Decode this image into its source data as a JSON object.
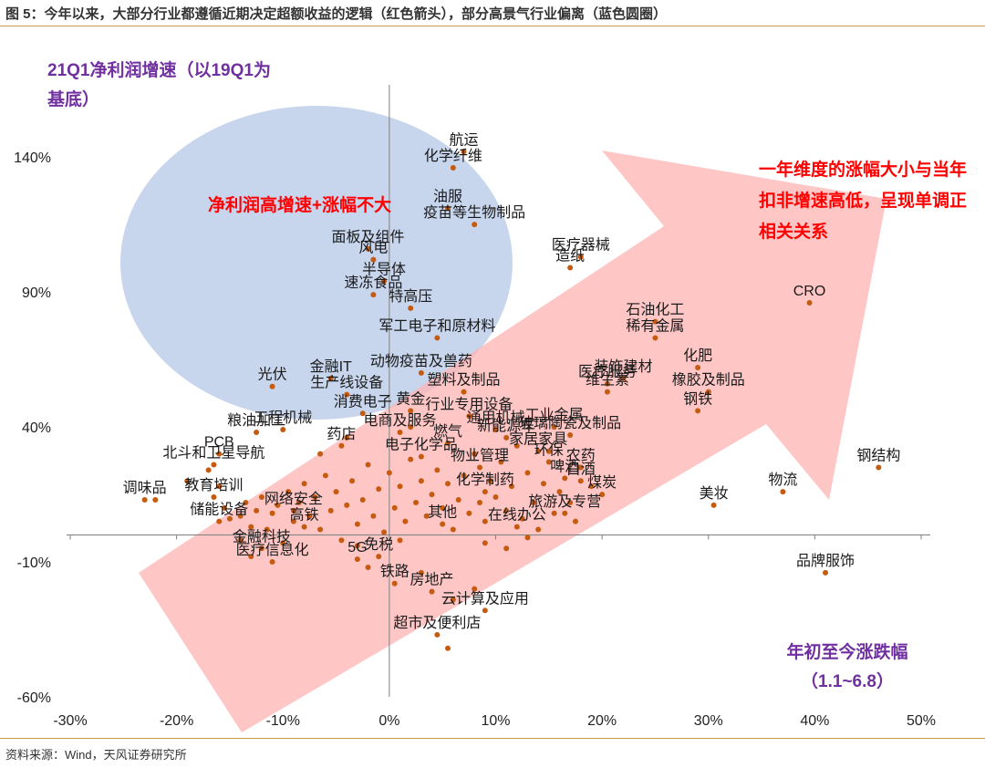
{
  "title": "图 5：今年以来，大部分行业都遵循近期决定超额收益的逻辑（红色箭头），部分高景气行业偏离（蓝色圆圈）",
  "source": "资料来源：Wind，天风证券研究所",
  "annotations": {
    "y_axis_label": "21Q1净利润增速（以19Q1为基底）",
    "x_axis_label": "年初至今涨跌幅（1.1~6.8）",
    "blue_circle_text": "净利润高增速+涨幅不大",
    "red_arrow_text": "一年维度的涨幅大小与当年扣非增速高低，呈现单调正相关关系"
  },
  "colors": {
    "point": "#c55a11",
    "blue_circle": "#b4c7e7",
    "red_arrow": "#ffb3b3",
    "annotation_red": "#ff0000",
    "annotation_purple": "#7030a0",
    "axis": "#7f7f7f"
  },
  "chart_data": {
    "type": "scatter",
    "xlim": [
      -0.3,
      0.5
    ],
    "ylim": [
      -0.6,
      1.6
    ],
    "x_ticks": [
      "-30%",
      "-20%",
      "-10%",
      "0%",
      "10%",
      "20%",
      "30%",
      "40%",
      "50%"
    ],
    "y_ticks": [
      "140%",
      "90%",
      "40%",
      "-10%",
      "-60%"
    ],
    "y_tick_values": [
      1.4,
      0.9,
      0.4,
      -0.1,
      -0.6
    ],
    "grid": false,
    "labeled_points": [
      {
        "label": "航运",
        "x": 0.07,
        "y": 1.42
      },
      {
        "label": "化学纤维",
        "x": 0.06,
        "y": 1.36
      },
      {
        "label": "油服",
        "x": 0.055,
        "y": 1.21
      },
      {
        "label": "疫苗等生物制品",
        "x": 0.08,
        "y": 1.15
      },
      {
        "label": "医疗器械",
        "x": 0.18,
        "y": 1.03
      },
      {
        "label": "造纸",
        "x": 0.17,
        "y": 0.99
      },
      {
        "label": "面板及组件",
        "x": -0.02,
        "y": 1.06
      },
      {
        "label": "风电",
        "x": -0.015,
        "y": 1.02
      },
      {
        "label": "半导体",
        "x": -0.005,
        "y": 0.94
      },
      {
        "label": "速冻食品",
        "x": -0.015,
        "y": 0.89
      },
      {
        "label": "特高压",
        "x": 0.02,
        "y": 0.84
      },
      {
        "label": "CRO",
        "x": 0.395,
        "y": 0.86
      },
      {
        "label": "石油化工",
        "x": 0.25,
        "y": 0.79
      },
      {
        "label": "稀有金属",
        "x": 0.25,
        "y": 0.73
      },
      {
        "label": "化肥",
        "x": 0.29,
        "y": 0.62
      },
      {
        "label": "装饰建材",
        "x": 0.22,
        "y": 0.58
      },
      {
        "label": "医疗服务",
        "x": 0.205,
        "y": 0.56
      },
      {
        "label": "维生素",
        "x": 0.205,
        "y": 0.53
      },
      {
        "label": "橡胶及制品",
        "x": 0.3,
        "y": 0.53
      },
      {
        "label": "钢铁",
        "x": 0.29,
        "y": 0.46
      },
      {
        "label": "军工电子和原材料",
        "x": 0.045,
        "y": 0.73
      },
      {
        "label": "光伏",
        "x": -0.11,
        "y": 0.55
      },
      {
        "label": "金融IT",
        "x": -0.055,
        "y": 0.58
      },
      {
        "label": "动物疫苗及兽药",
        "x": 0.03,
        "y": 0.6
      },
      {
        "label": "生产线设备",
        "x": -0.04,
        "y": 0.52
      },
      {
        "label": "塑料及制品",
        "x": 0.07,
        "y": 0.53
      },
      {
        "label": "黄金",
        "x": 0.02,
        "y": 0.46
      },
      {
        "label": "行业专用设备",
        "x": 0.075,
        "y": 0.44
      },
      {
        "label": "粮油加工",
        "x": -0.125,
        "y": 0.38
      },
      {
        "label": "工程机械",
        "x": -0.1,
        "y": 0.39
      },
      {
        "label": "消费电子",
        "x": -0.025,
        "y": 0.45
      },
      {
        "label": "电商及服务",
        "x": 0.01,
        "y": 0.38
      },
      {
        "label": "药店",
        "x": -0.045,
        "y": 0.33
      },
      {
        "label": "通用机械",
        "x": 0.1,
        "y": 0.39
      },
      {
        "label": "新能源车",
        "x": 0.11,
        "y": 0.36
      },
      {
        "label": "工业金属",
        "x": 0.155,
        "y": 0.4
      },
      {
        "label": "玻璃陶瓷及制品",
        "x": 0.17,
        "y": 0.37
      },
      {
        "label": "燃气",
        "x": 0.055,
        "y": 0.34
      },
      {
        "label": "家居家具",
        "x": 0.14,
        "y": 0.31
      },
      {
        "label": "PCB",
        "x": -0.16,
        "y": 0.3
      },
      {
        "label": "北斗和卫星导航",
        "x": -0.165,
        "y": 0.26
      },
      {
        "label": "电子化学品",
        "x": 0.03,
        "y": 0.29
      },
      {
        "label": "物业管理",
        "x": 0.085,
        "y": 0.25
      },
      {
        "label": "环保",
        "x": 0.15,
        "y": 0.27
      },
      {
        "label": "农药",
        "x": 0.18,
        "y": 0.25
      },
      {
        "label": "啤酒",
        "x": 0.165,
        "y": 0.21
      },
      {
        "label": "白酒",
        "x": 0.18,
        "y": 0.2
      },
      {
        "label": "调味品",
        "x": -0.23,
        "y": 0.13
      },
      {
        "label": "教育培训",
        "x": -0.165,
        "y": 0.14
      },
      {
        "label": "储能设备",
        "x": -0.16,
        "y": 0.05
      },
      {
        "label": "煤炭",
        "x": 0.2,
        "y": 0.15
      },
      {
        "label": "化学制药",
        "x": 0.09,
        "y": 0.16
      },
      {
        "label": "旅游及专营",
        "x": 0.165,
        "y": 0.08
      },
      {
        "label": "其他",
        "x": 0.05,
        "y": 0.04
      },
      {
        "label": "在线办公",
        "x": 0.12,
        "y": 0.03
      },
      {
        "label": "高铁",
        "x": -0.08,
        "y": 0.03
      },
      {
        "label": "网络安全",
        "x": -0.09,
        "y": 0.09
      },
      {
        "label": "美妆",
        "x": 0.305,
        "y": 0.11
      },
      {
        "label": "物流",
        "x": 0.37,
        "y": 0.16
      },
      {
        "label": "钢结构",
        "x": 0.46,
        "y": 0.25
      },
      {
        "label": "品牌服饰",
        "x": 0.41,
        "y": -0.14
      },
      {
        "label": "医疗信息化",
        "x": -0.11,
        "y": -0.1
      },
      {
        "label": "金融科技",
        "x": -0.12,
        "y": -0.05
      },
      {
        "label": "5G",
        "x": -0.03,
        "y": -0.09
      },
      {
        "label": "免税",
        "x": -0.01,
        "y": -0.08
      },
      {
        "label": "铁路",
        "x": 0.005,
        "y": -0.18
      },
      {
        "label": "房地产",
        "x": 0.04,
        "y": -0.21
      },
      {
        "label": "云计算及应用",
        "x": 0.09,
        "y": -0.28
      },
      {
        "label": "超市及便利店",
        "x": 0.045,
        "y": -0.37
      }
    ],
    "unlabeled_points": [
      [
        -0.22,
        0.13
      ],
      [
        -0.19,
        0.2
      ],
      [
        -0.17,
        0.24
      ],
      [
        -0.16,
        0.18
      ],
      [
        -0.155,
        0.1
      ],
      [
        -0.15,
        0.06
      ],
      [
        -0.14,
        0.07
      ],
      [
        -0.135,
        0.12
      ],
      [
        -0.13,
        0.03
      ],
      [
        -0.125,
        0.09
      ],
      [
        -0.12,
        0.14
      ],
      [
        -0.115,
        0.02
      ],
      [
        -0.11,
        0.08
      ],
      [
        -0.1,
        -0.03
      ],
      [
        -0.095,
        0.16
      ],
      [
        -0.09,
        0.05
      ],
      [
        -0.085,
        0.12
      ],
      [
        -0.08,
        0.19
      ],
      [
        -0.075,
        0.07
      ],
      [
        -0.07,
        0.14
      ],
      [
        -0.065,
        0.02
      ],
      [
        -0.06,
        0.22
      ],
      [
        -0.055,
        0.09
      ],
      [
        -0.05,
        0.16
      ],
      [
        -0.045,
        -0.02
      ],
      [
        -0.04,
        0.11
      ],
      [
        -0.035,
        0.2
      ],
      [
        -0.03,
        0.04
      ],
      [
        -0.025,
        0.13
      ],
      [
        -0.02,
        0.26
      ],
      [
        -0.015,
        0.07
      ],
      [
        -0.01,
        0.17
      ],
      [
        -0.005,
        0.01
      ],
      [
        0.0,
        0.23
      ],
      [
        0.005,
        0.1
      ],
      [
        0.01,
        0.18
      ],
      [
        0.015,
        0.05
      ],
      [
        0.02,
        0.28
      ],
      [
        0.025,
        0.12
      ],
      [
        0.03,
        0.2
      ],
      [
        0.035,
        0.07
      ],
      [
        0.04,
        0.15
      ],
      [
        0.045,
        0.24
      ],
      [
        0.05,
        0.1
      ],
      [
        0.055,
        0.19
      ],
      [
        0.06,
        0.02
      ],
      [
        0.065,
        0.13
      ],
      [
        0.07,
        0.22
      ],
      [
        0.075,
        0.08
      ],
      [
        0.08,
        0.3
      ],
      [
        0.085,
        0.12
      ],
      [
        0.09,
        0.05
      ],
      [
        0.095,
        0.2
      ],
      [
        0.1,
        0.14
      ],
      [
        0.105,
        0.27
      ],
      [
        0.11,
        0.09
      ],
      [
        0.115,
        0.18
      ],
      [
        0.12,
        0.33
      ],
      [
        0.125,
        0.06
      ],
      [
        0.13,
        0.23
      ],
      [
        0.135,
        0.12
      ],
      [
        0.14,
        0.02
      ],
      [
        0.145,
        0.19
      ],
      [
        0.15,
        0.31
      ],
      [
        0.155,
        0.08
      ],
      [
        0.16,
        0.16
      ],
      [
        0.17,
        0.12
      ],
      [
        0.175,
        0.05
      ],
      [
        0.19,
        0.18
      ],
      [
        -0.13,
        -0.08
      ],
      [
        -0.14,
        -0.02
      ],
      [
        -0.105,
        0.11
      ],
      [
        -0.02,
        -0.12
      ],
      [
        0.03,
        -0.14
      ],
      [
        0.06,
        -0.24
      ],
      [
        0.08,
        -0.2
      ],
      [
        0.055,
        -0.42
      ],
      [
        -0.03,
        -0.04
      ],
      [
        0.01,
        -0.02
      ],
      [
        0.09,
        -0.03
      ],
      [
        0.11,
        -0.05
      ],
      [
        0.13,
        -0.01
      ],
      [
        -0.065,
        0.3
      ],
      [
        -0.04,
        0.36
      ],
      [
        0.02,
        0.4
      ]
    ]
  }
}
